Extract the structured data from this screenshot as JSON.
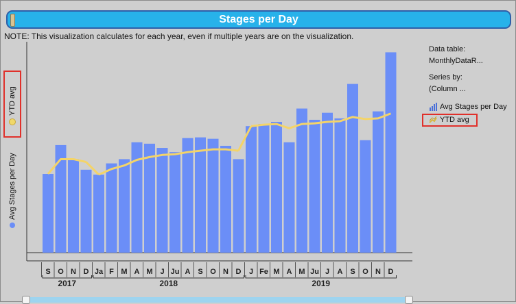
{
  "title": "Stages per Day",
  "note": "NOTE: This visualization calculates for each year, even if multiple years are on the visualization.",
  "right_panel": {
    "data_table_label": "Data table:",
    "data_table_value": "MonthlyDataR...",
    "series_by_label": "Series by:",
    "series_by_value": "(Column ..."
  },
  "legend": [
    {
      "label": "Avg Stages per Day",
      "icon": "bar-chart-icon",
      "color": "#6b8ef7"
    },
    {
      "label": "YTD avg",
      "icon": "line-chart-icon",
      "color": "#f0d86a"
    }
  ],
  "y_axis_labels": {
    "ytd": "YTD avg",
    "avg": "Avg Stages per Day"
  },
  "colors": {
    "bar": "#6b8ef7",
    "line": "#f4d468",
    "title_bg": "#27b2ea",
    "highlight": "#e0302a"
  },
  "chart_data": {
    "type": "bar",
    "categories": [
      "S",
      "O",
      "N",
      "D",
      "Ja",
      "F",
      "M",
      "A",
      "M",
      "J",
      "Ju",
      "A",
      "S",
      "O",
      "N",
      "D",
      "J",
      "Fe",
      "M",
      "A",
      "M",
      "Ju",
      "J",
      "A",
      "S",
      "O",
      "N",
      "D"
    ],
    "years": [
      {
        "label": "2017",
        "start": 0,
        "end": 3
      },
      {
        "label": "2018",
        "start": 4,
        "end": 15
      },
      {
        "label": "2019",
        "start": 16,
        "end": 27
      }
    ],
    "series": [
      {
        "name": "Avg Stages per Day",
        "kind": "bar",
        "values": [
          112,
          153,
          133,
          118,
          111,
          127,
          133,
          157,
          155,
          149,
          143,
          163,
          164,
          162,
          152,
          133,
          180,
          183,
          186,
          157,
          205,
          189,
          199,
          191,
          240,
          160,
          201,
          285
        ]
      },
      {
        "name": "YTD avg",
        "kind": "line",
        "values": [
          112,
          133,
          133,
          129,
          111,
          119,
          124,
          132,
          136,
          139,
          140,
          143,
          145,
          147,
          147,
          145,
          180,
          182,
          183,
          177,
          183,
          184,
          186,
          187,
          193,
          190,
          191,
          198
        ]
      }
    ],
    "ylim": [
      0,
      300
    ]
  }
}
